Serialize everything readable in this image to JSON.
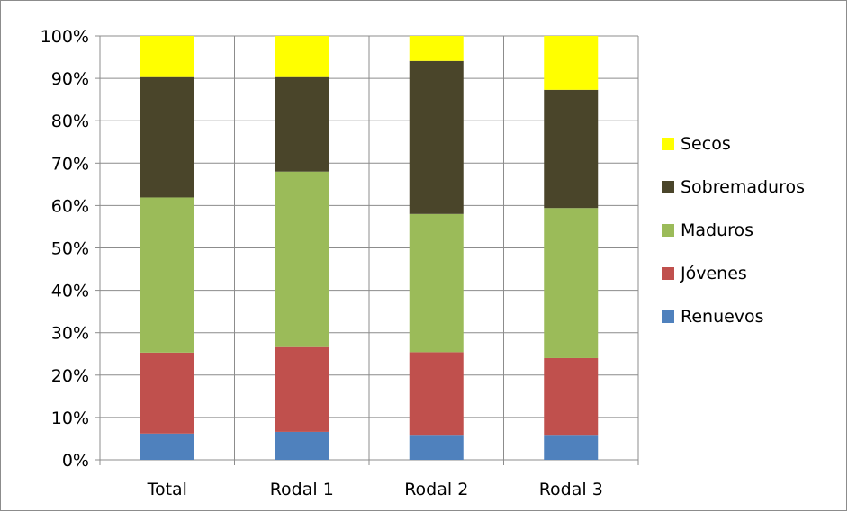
{
  "chart_data": {
    "type": "bar",
    "stacked": true,
    "normalized": true,
    "categories": [
      "Total",
      "Rodal 1",
      "Rodal 2",
      "Rodal 3"
    ],
    "series": [
      {
        "name": "Renuevos",
        "color": "#4f81bd",
        "values": [
          6.2,
          6.6,
          5.9,
          5.9
        ]
      },
      {
        "name": "Jóvenes",
        "color": "#c0504d",
        "values": [
          19.1,
          20.0,
          19.5,
          18.1
        ]
      },
      {
        "name": "Maduros",
        "color": "#9bbb59",
        "values": [
          36.6,
          41.4,
          32.6,
          35.4
        ]
      },
      {
        "name": "Sobremaduros",
        "color": "#4a452a",
        "values": [
          28.4,
          22.3,
          36.1,
          27.9
        ]
      },
      {
        "name": "Secos",
        "color": "#ffff00",
        "values": [
          9.7,
          9.7,
          5.9,
          12.7
        ]
      }
    ],
    "yticks": [
      "0%",
      "10%",
      "20%",
      "30%",
      "40%",
      "50%",
      "60%",
      "70%",
      "80%",
      "90%",
      "100%"
    ],
    "ylim": [
      0,
      100
    ],
    "grid": true,
    "legend_position": "right",
    "legend_order": [
      "Secos",
      "Sobremaduros",
      "Maduros",
      "Jóvenes",
      "Renuevos"
    ]
  }
}
